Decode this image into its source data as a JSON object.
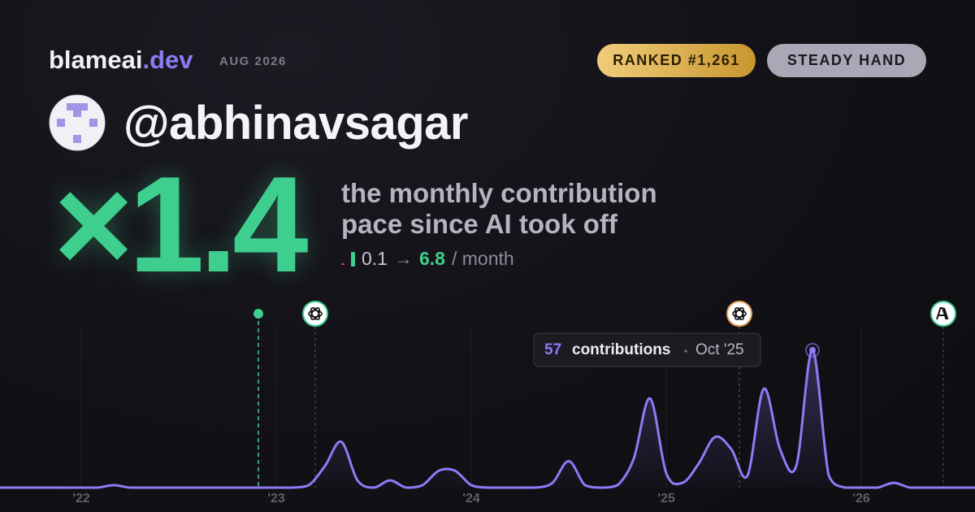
{
  "header": {
    "brand": "blameai",
    "tld": ".dev",
    "period": "AUG 2026",
    "rank_badge": "RANKED #1,261",
    "style_badge": "STEADY HAND"
  },
  "profile": {
    "username": "@abhinavsagar"
  },
  "headline": {
    "multiplier": "×1.4",
    "description": [
      "the monthly contribution",
      "pace since AI took off"
    ],
    "from": "0.1",
    "arrow": "→",
    "to": "6.8",
    "unit": "/ month"
  },
  "chart_data": {
    "type": "line",
    "color": "#8b7cf6",
    "categories": [
      null,
      null,
      null,
      null,
      null,
      "'22",
      null,
      null,
      null,
      null,
      null,
      null,
      null,
      null,
      null,
      null,
      null,
      "'23",
      null,
      null,
      null,
      null,
      null,
      null,
      null,
      null,
      null,
      null,
      null,
      "'24",
      null,
      null,
      null,
      null,
      null,
      null,
      null,
      null,
      null,
      null,
      null,
      "'25",
      null,
      null,
      null,
      null,
      null,
      null,
      null,
      null,
      null,
      null,
      null,
      "'26",
      null,
      null,
      null,
      null,
      null,
      null,
      null
    ],
    "values": [
      0,
      0,
      0,
      0,
      0,
      0,
      0,
      1,
      0,
      0,
      0,
      0,
      0,
      0,
      0,
      0,
      0,
      0,
      0,
      1,
      9,
      19,
      3,
      0,
      3,
      0,
      1,
      7,
      7,
      1,
      0,
      0,
      0,
      0,
      2,
      11,
      1,
      0,
      1,
      12,
      37,
      6,
      2,
      10,
      21,
      16,
      5,
      41,
      16,
      9,
      57,
      5,
      0,
      0,
      0,
      2,
      0,
      0,
      0,
      0,
      0
    ],
    "ylim": [
      0,
      60
    ],
    "grid": true,
    "tooltip": {
      "label": "contributions",
      "date": "Oct '25"
    }
  }
}
